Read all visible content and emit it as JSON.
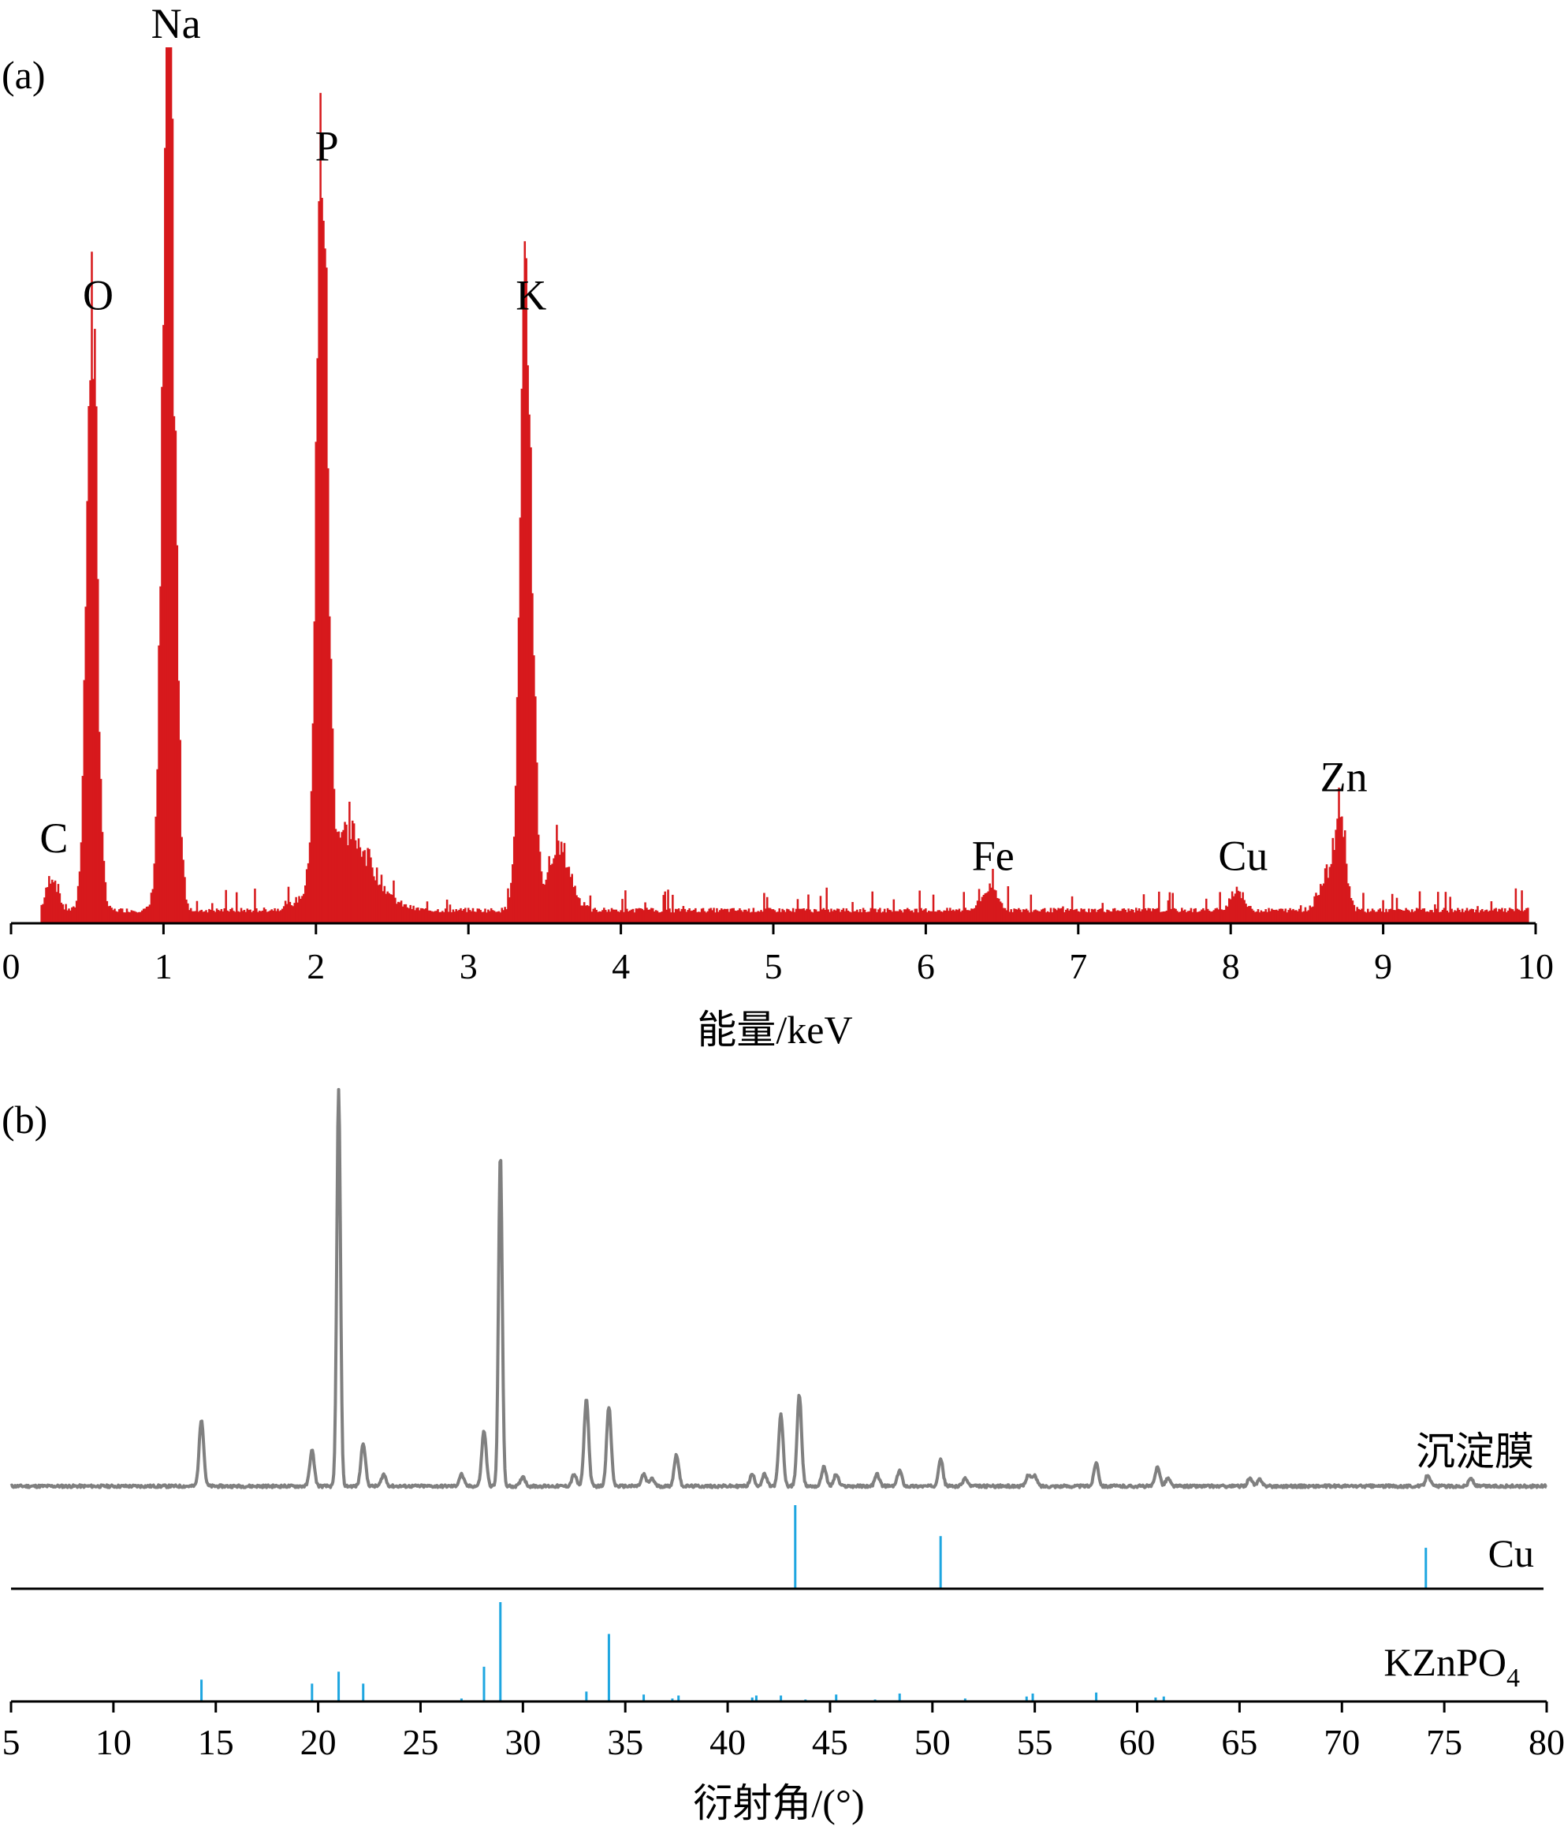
{
  "chart_data": [
    {
      "panel_label": "(a)",
      "type": "bar",
      "xlabel": "能量/keV",
      "ylabel": "",
      "xlim": [
        0,
        10
      ],
      "ylim": [
        0,
        100
      ],
      "grid": false,
      "colors": {
        "bars": "#d7191c"
      },
      "x_ticks": [
        "0",
        "1",
        "2",
        "3",
        "4",
        "5",
        "6",
        "7",
        "8",
        "9",
        "10"
      ],
      "peaks": [
        {
          "label": "C",
          "x": 0.24,
          "y": 7
        },
        {
          "label": "O",
          "x": 0.53,
          "y": 69
        },
        {
          "label": "Na",
          "x": 1.04,
          "y": 100
        },
        {
          "label": "P",
          "x": 2.03,
          "y": 86
        },
        {
          "label": "K",
          "x": 3.37,
          "y": 69
        },
        {
          "label": "Fe",
          "x": 6.4,
          "y": 5
        },
        {
          "label": "Cu",
          "x": 8.04,
          "y": 5
        },
        {
          "label": "Zn",
          "x": 8.7,
          "y": 14
        }
      ],
      "spectrum": {
        "x_start": 0.2,
        "x_end": 9.95,
        "step": 0.01,
        "background": 1.5,
        "components": [
          {
            "center": 0.27,
            "height": 4,
            "width": 0.035
          },
          {
            "center": 0.53,
            "height": 69,
            "width": 0.035
          },
          {
            "center": 1.035,
            "height": 98,
            "width": 0.04
          },
          {
            "center": 2.04,
            "height": 84,
            "width": 0.035
          },
          {
            "center": 2.2,
            "height": 9,
            "width": 0.16
          },
          {
            "center": 3.38,
            "height": 68,
            "width": 0.04
          },
          {
            "center": 3.6,
            "height": 7,
            "width": 0.07
          },
          {
            "center": 6.42,
            "height": 2.5,
            "width": 0.05
          },
          {
            "center": 8.04,
            "height": 2.5,
            "width": 0.04
          },
          {
            "center": 8.63,
            "height": 4,
            "width": 0.05
          },
          {
            "center": 8.72,
            "height": 11,
            "width": 0.035
          }
        ]
      }
    },
    {
      "panel_label": "(b)",
      "type": "line",
      "xlabel": "衍射角/(°)",
      "ylabel": "",
      "xlim": [
        5,
        80
      ],
      "grid": false,
      "x_ticks": [
        "5",
        "10",
        "15",
        "20",
        "25",
        "30",
        "35",
        "40",
        "45",
        "50",
        "55",
        "60",
        "65",
        "70",
        "75",
        "80"
      ],
      "series": [
        {
          "name": "沉淀膜",
          "kind": "pattern",
          "color": "#808080",
          "ylim": [
            0,
            100
          ],
          "background": 1.0,
          "peaks": [
            {
              "x": 14.3,
              "y": 17
            },
            {
              "x": 19.7,
              "y": 9
            },
            {
              "x": 21.0,
              "y": 100
            },
            {
              "x": 22.2,
              "y": 11
            },
            {
              "x": 23.2,
              "y": 3
            },
            {
              "x": 27.0,
              "y": 3
            },
            {
              "x": 28.1,
              "y": 14
            },
            {
              "x": 28.9,
              "y": 84
            },
            {
              "x": 30.0,
              "y": 2.5
            },
            {
              "x": 32.5,
              "y": 3
            },
            {
              "x": 33.1,
              "y": 22
            },
            {
              "x": 34.2,
              "y": 20
            },
            {
              "x": 35.9,
              "y": 3
            },
            {
              "x": 36.3,
              "y": 2
            },
            {
              "x": 37.5,
              "y": 8
            },
            {
              "x": 41.2,
              "y": 3
            },
            {
              "x": 41.8,
              "y": 3
            },
            {
              "x": 42.6,
              "y": 18
            },
            {
              "x": 43.5,
              "y": 23
            },
            {
              "x": 44.7,
              "y": 5
            },
            {
              "x": 45.3,
              "y": 3
            },
            {
              "x": 47.3,
              "y": 3
            },
            {
              "x": 48.4,
              "y": 4
            },
            {
              "x": 50.4,
              "y": 7
            },
            {
              "x": 51.6,
              "y": 2
            },
            {
              "x": 54.7,
              "y": 3
            },
            {
              "x": 55.0,
              "y": 2.5
            },
            {
              "x": 58.0,
              "y": 6
            },
            {
              "x": 61.0,
              "y": 5
            },
            {
              "x": 61.5,
              "y": 2
            },
            {
              "x": 65.5,
              "y": 2
            },
            {
              "x": 66.0,
              "y": 1.8
            },
            {
              "x": 74.2,
              "y": 3
            },
            {
              "x": 76.3,
              "y": 2
            }
          ]
        },
        {
          "name": "Cu",
          "kind": "reference",
          "color": "#1ea6e0",
          "ylim": [
            0,
            100
          ],
          "lines": [
            {
              "x": 43.3,
              "y": 100
            },
            {
              "x": 50.4,
              "y": 63
            },
            {
              "x": 74.1,
              "y": 49
            }
          ]
        },
        {
          "name": "KZnPO",
          "subscript": "4",
          "kind": "reference",
          "color": "#1ea6e0",
          "ylim": [
            0,
            100
          ],
          "lines": [
            {
              "x": 14.3,
              "y": 22
            },
            {
              "x": 19.7,
              "y": 18
            },
            {
              "x": 21.0,
              "y": 30
            },
            {
              "x": 22.2,
              "y": 18
            },
            {
              "x": 27.0,
              "y": 3
            },
            {
              "x": 28.1,
              "y": 35
            },
            {
              "x": 28.9,
              "y": 100
            },
            {
              "x": 33.1,
              "y": 10
            },
            {
              "x": 34.2,
              "y": 68
            },
            {
              "x": 35.9,
              "y": 7
            },
            {
              "x": 37.3,
              "y": 3
            },
            {
              "x": 37.6,
              "y": 6
            },
            {
              "x": 41.2,
              "y": 4
            },
            {
              "x": 41.4,
              "y": 6
            },
            {
              "x": 42.6,
              "y": 6
            },
            {
              "x": 43.8,
              "y": 2
            },
            {
              "x": 45.3,
              "y": 7
            },
            {
              "x": 47.2,
              "y": 2
            },
            {
              "x": 48.4,
              "y": 8
            },
            {
              "x": 51.6,
              "y": 3
            },
            {
              "x": 54.6,
              "y": 5
            },
            {
              "x": 54.9,
              "y": 8
            },
            {
              "x": 58.0,
              "y": 9
            },
            {
              "x": 60.9,
              "y": 4
            },
            {
              "x": 61.3,
              "y": 5
            }
          ]
        }
      ]
    }
  ]
}
